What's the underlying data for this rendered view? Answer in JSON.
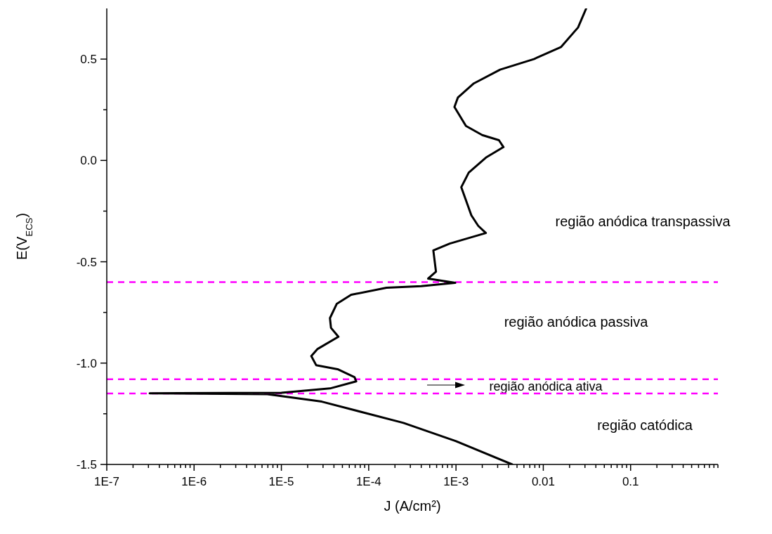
{
  "chart_data": {
    "type": "line",
    "xlabel": "J (A/cm²)",
    "ylabel": "E(V$_{ECS}$)",
    "log": "x",
    "xlim": [
      1e-07,
      1
    ],
    "ylim": [
      -1.5,
      0.75
    ],
    "xticks": [
      {
        "value": 1e-07,
        "label": "1E-7"
      },
      {
        "value": 2e-07,
        "label": null
      },
      {
        "value": 3e-07,
        "label": null
      },
      {
        "value": 4e-07,
        "label": null
      },
      {
        "value": 5e-07,
        "label": null
      },
      {
        "value": 6e-07,
        "label": null
      },
      {
        "value": 7e-07,
        "label": null
      },
      {
        "value": 8e-07,
        "label": null
      },
      {
        "value": 9e-07,
        "label": null
      },
      {
        "value": 1e-06,
        "label": "1E-6"
      },
      {
        "value": 2e-06,
        "label": null
      },
      {
        "value": 3e-06,
        "label": null
      },
      {
        "value": 4e-06,
        "label": null
      },
      {
        "value": 5e-06,
        "label": null
      },
      {
        "value": 6e-06,
        "label": null
      },
      {
        "value": 7e-06,
        "label": null
      },
      {
        "value": 8e-06,
        "label": null
      },
      {
        "value": 9e-06,
        "label": null
      },
      {
        "value": 1e-05,
        "label": "1E-5"
      },
      {
        "value": 2e-05,
        "label": null
      },
      {
        "value": 3e-05,
        "label": null
      },
      {
        "value": 4e-05,
        "label": null
      },
      {
        "value": 5e-05,
        "label": null
      },
      {
        "value": 6e-05,
        "label": null
      },
      {
        "value": 7e-05,
        "label": null
      },
      {
        "value": 8e-05,
        "label": null
      },
      {
        "value": 9e-05,
        "label": null
      },
      {
        "value": 0.0001,
        "label": "1E-4"
      },
      {
        "value": 0.0002,
        "label": null
      },
      {
        "value": 0.0003,
        "label": null
      },
      {
        "value": 0.0004,
        "label": null
      },
      {
        "value": 0.0005,
        "label": null
      },
      {
        "value": 0.0006,
        "label": null
      },
      {
        "value": 0.0007,
        "label": null
      },
      {
        "value": 0.0008,
        "label": null
      },
      {
        "value": 0.0009,
        "label": null
      },
      {
        "value": 0.001,
        "label": "1E-3"
      },
      {
        "value": 0.002,
        "label": null
      },
      {
        "value": 0.003,
        "label": null
      },
      {
        "value": 0.004,
        "label": null
      },
      {
        "value": 0.005,
        "label": null
      },
      {
        "value": 0.006,
        "label": null
      },
      {
        "value": 0.007,
        "label": null
      },
      {
        "value": 0.008,
        "label": null
      },
      {
        "value": 0.009,
        "label": null
      },
      0.01,
      {
        "value": 0.02,
        "label": null
      },
      {
        "value": 0.03,
        "label": null
      },
      {
        "value": 0.04,
        "label": null
      },
      {
        "value": 0.05,
        "label": null
      },
      {
        "value": 0.06,
        "label": null
      },
      {
        "value": 0.07,
        "label": null
      },
      {
        "value": 0.08,
        "label": null
      },
      {
        "value": 0.09,
        "label": null
      },
      0.1,
      {
        "value": 0.2,
        "label": null
      },
      {
        "value": 0.3,
        "label": null
      },
      {
        "value": 0.4,
        "label": null
      },
      {
        "value": 0.5,
        "label": null
      },
      {
        "value": 0.6,
        "label": null
      },
      {
        "value": 0.7,
        "label": null
      },
      {
        "value": 0.8,
        "label": null
      },
      {
        "value": 0.9,
        "label": null
      },
      {
        "value": 1,
        "label": null
      }
    ],
    "yticks": [
      -1.5,
      {
        "value": -1.25,
        "label": null
      },
      {
        "value": -1,
        "label": "-1.0"
      },
      {
        "value": -0.75,
        "label": null
      },
      -0.5,
      {
        "value": -0.25,
        "label": null
      },
      {
        "value": 0,
        "label": "0.0"
      },
      {
        "value": 0.25,
        "label": null
      },
      0.5
    ],
    "series": [
      {
        "color": "#000000",
        "x": [
          0.0044,
          0.001,
          0.00025,
          2.9e-05,
          6.9e-06,
          3.1e-07,
          1e-05,
          3.6e-05,
          7.2e-05,
          6.9e-05,
          4.4e-05,
          2.5e-05,
          2.2e-05,
          2.6e-05,
          4.5e-05,
          3.7e-05,
          3.6e-05,
          4.3e-05,
          6.3e-05,
          0.00016,
          0.0004,
          0.00098,
          0.00048,
          0.00059,
          0.00055,
          0.00085,
          0.0022,
          0.0018,
          0.0015,
          0.00115,
          0.0014,
          0.0022,
          0.0035,
          0.0031,
          0.002,
          0.0013,
          0.00096,
          0.00105,
          0.0016,
          0.0032,
          0.0078,
          0.016,
          0.025,
          0.031
        ],
        "values": [
          -1.5,
          -1.385,
          -1.295,
          -1.19,
          -1.153,
          -1.149,
          -1.146,
          -1.125,
          -1.09,
          -1.07,
          -1.03,
          -1.01,
          -0.965,
          -0.93,
          -0.87,
          -0.826,
          -0.778,
          -0.708,
          -0.663,
          -0.628,
          -0.62,
          -0.604,
          -0.583,
          -0.549,
          -0.444,
          -0.41,
          -0.358,
          -0.323,
          -0.271,
          -0.132,
          -0.06,
          0.014,
          0.066,
          0.1,
          0.125,
          0.17,
          0.264,
          0.31,
          0.38,
          0.448,
          0.5,
          0.56,
          0.656,
          0.75
        ]
      }
    ],
    "ref_lines": [
      {
        "axis": "y",
        "value": -0.6,
        "color": "#ff00ff",
        "line_style": "dashed"
      },
      {
        "axis": "y",
        "value": -1.08,
        "color": "#ff00ff",
        "line_style": "dashed"
      },
      {
        "axis": "y",
        "value": -1.15,
        "color": "#ff00ff",
        "line_style": "dashed"
      }
    ],
    "annotations": [
      "região anódica transpassiva",
      "região anódica passiva",
      "região anódica ativa",
      "região catódica"
    ]
  }
}
